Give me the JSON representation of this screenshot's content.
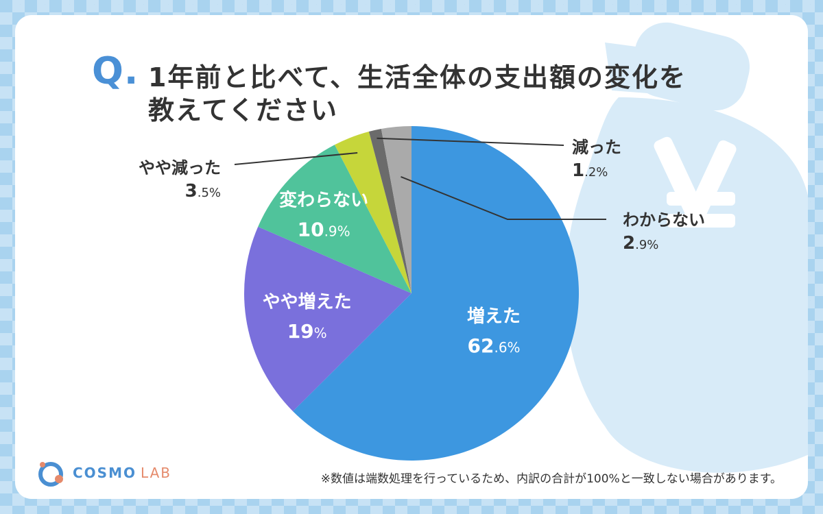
{
  "title": {
    "mark": "Q.",
    "line1": "1年前と比べて、生活全体の支出額の変化を",
    "line2": "教えてください"
  },
  "chart_data": {
    "type": "pie",
    "title": "1年前と比べて、生活全体の支出額の変化を教えてください",
    "start": "12 o'clock",
    "direction": "clockwise",
    "slices": [
      {
        "label": "増えた",
        "value": 62.6,
        "value_int": "62",
        "value_dec": ".6%",
        "color": "#3d97e0",
        "label_pos": "inside"
      },
      {
        "label": "やや増えた",
        "value": 19,
        "value_int": "19",
        "value_dec": "%",
        "color": "#7a70dc",
        "label_pos": "inside"
      },
      {
        "label": "変わらない",
        "value": 10.9,
        "value_int": "10",
        "value_dec": ".9%",
        "color": "#50c39b",
        "label_pos": "inside"
      },
      {
        "label": "やや減った",
        "value": 3.5,
        "value_int": "3",
        "value_dec": ".5%",
        "color": "#c6d63a",
        "label_pos": "outside-left"
      },
      {
        "label": "減った",
        "value": 1.2,
        "value_int": "1",
        "value_dec": ".2%",
        "color": "#6b6b6b",
        "label_pos": "outside-right"
      },
      {
        "label": "わからない",
        "value": 2.9,
        "value_int": "2",
        "value_dec": ".9%",
        "color": "#aaaaaa",
        "label_pos": "outside-right"
      }
    ]
  },
  "colors": {
    "background": "#a9d3ef",
    "accent": "#4a90d6",
    "text": "#333333",
    "pouch": "#d8ebf8"
  },
  "footer": {
    "logo_word": "COSMO",
    "logo_sub": "LAB",
    "note": "※数値は端数処理を行っているため、内訳の合計が100%と一致しない場合があります。"
  }
}
